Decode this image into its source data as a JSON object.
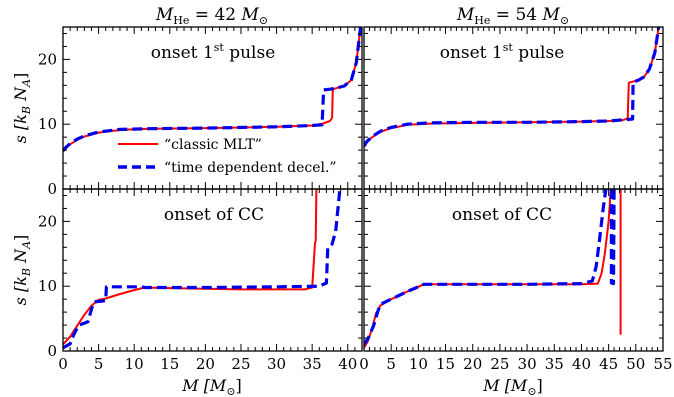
{
  "chart_data": [
    {
      "type": "line",
      "panel": "top-left",
      "title": "M_He = 42 M_sun",
      "annotation": "onset 1st pulse",
      "xlim": [
        0,
        42
      ],
      "ylim": [
        0,
        25
      ],
      "xticks": [
        0,
        5,
        10,
        15,
        20,
        25,
        30,
        35,
        40
      ],
      "yticks": [
        0,
        10,
        20
      ],
      "series": [
        {
          "name": "“classic MLT”",
          "color": "#ff0000",
          "style": "solid",
          "x": [
            0,
            0.3,
            1,
            2,
            3,
            5,
            8,
            12,
            20,
            30,
            35,
            36.5,
            37.5,
            37.8,
            37.9,
            38.5,
            39.5,
            40.5,
            41.2,
            41.8
          ],
          "y": [
            5.8,
            6.2,
            6.9,
            7.6,
            8.1,
            8.7,
            9.1,
            9.3,
            9.4,
            9.6,
            9.8,
            10.1,
            10.5,
            11.0,
            15.4,
            15.6,
            15.9,
            16.8,
            19.5,
            25
          ]
        },
        {
          "name": "“time dependent decel.”",
          "color": "#0000ee",
          "style": "dashed",
          "x": [
            0,
            0.3,
            1,
            2,
            3,
            5,
            8,
            12,
            20,
            30,
            35,
            36.4,
            36.6,
            37.5,
            38.5,
            39.5,
            40.5,
            41.2,
            41.8
          ],
          "y": [
            5.9,
            6.3,
            7.0,
            7.7,
            8.2,
            8.8,
            9.2,
            9.3,
            9.4,
            9.6,
            9.8,
            9.9,
            15.3,
            15.4,
            15.6,
            15.9,
            16.8,
            19.5,
            25
          ]
        }
      ]
    },
    {
      "type": "line",
      "panel": "top-right",
      "title": "M_He = 54 M_sun",
      "annotation": "onset 1st pulse",
      "xlim": [
        0,
        55
      ],
      "ylim": [
        0,
        25
      ],
      "xticks": [
        0,
        5,
        10,
        15,
        20,
        25,
        30,
        35,
        40,
        45,
        50,
        55
      ],
      "yticks": [
        0,
        10,
        20
      ],
      "series": [
        {
          "name": "“classic MLT”",
          "color": "#ff0000",
          "style": "solid",
          "x": [
            0,
            0.5,
            1.5,
            3,
            5,
            8,
            12,
            20,
            30,
            40,
            45,
            47.5,
            48.5,
            48.7,
            50,
            51.5,
            52.5,
            53.5,
            54.2
          ],
          "y": [
            6.5,
            7.2,
            8.0,
            8.8,
            9.4,
            9.9,
            10.1,
            10.2,
            10.3,
            10.4,
            10.5,
            10.6,
            10.9,
            16.4,
            16.7,
            17.3,
            18.5,
            21.0,
            25
          ]
        },
        {
          "name": "“time dependent decel.”",
          "color": "#0000ee",
          "style": "dashed",
          "x": [
            0,
            0.5,
            1.5,
            3,
            5,
            8,
            12,
            20,
            30,
            40,
            45,
            48,
            49.4,
            49.5,
            50.5,
            51.5,
            52.5,
            53.5,
            54.2
          ],
          "y": [
            6.6,
            7.3,
            8.1,
            8.9,
            9.5,
            10.0,
            10.2,
            10.3,
            10.3,
            10.4,
            10.5,
            10.7,
            10.8,
            16.5,
            16.8,
            17.3,
            18.5,
            21.0,
            25
          ]
        }
      ]
    },
    {
      "type": "line",
      "panel": "bottom-left",
      "annotation": "onset of CC",
      "xlim": [
        0,
        42
      ],
      "ylim": [
        0,
        25
      ],
      "xticks": [
        0,
        5,
        10,
        15,
        20,
        25,
        30,
        35,
        40
      ],
      "yticks": [
        0,
        10,
        20
      ],
      "series": [
        {
          "name": "“classic MLT”",
          "color": "#ff0000",
          "style": "solid",
          "x": [
            0,
            1,
            2,
            3,
            4,
            5,
            6,
            8,
            10,
            11.5,
            15,
            20,
            25,
            30,
            34,
            35,
            35.4,
            35.5,
            35.6
          ],
          "y": [
            1.0,
            2.2,
            3.9,
            5.6,
            7.0,
            7.9,
            8.1,
            8.8,
            9.4,
            9.8,
            9.7,
            9.6,
            9.5,
            9.5,
            9.5,
            9.8,
            16.7,
            17.0,
            25
          ]
        },
        {
          "name": "“time dependent decel.”",
          "color": "#0000ee",
          "style": "dashed",
          "x": [
            0,
            1,
            1.5,
            2.2,
            3,
            3.5,
            4.2,
            4.5,
            5.5,
            6.0,
            6.1,
            8,
            10,
            11,
            11.5,
            20,
            30,
            36,
            37.0,
            37.2,
            37.8,
            38.3,
            38.9
          ],
          "y": [
            0.5,
            1.1,
            2.5,
            4.0,
            4.3,
            4.5,
            7.2,
            7.6,
            7.7,
            7.8,
            9.9,
            9.9,
            9.9,
            9.9,
            9.8,
            9.8,
            9.9,
            10.0,
            10.5,
            16.0,
            16.5,
            18.5,
            25
          ]
        }
      ]
    },
    {
      "type": "line",
      "panel": "bottom-right",
      "annotation": "onset of CC",
      "xlim": [
        0,
        55
      ],
      "ylim": [
        0,
        25
      ],
      "xticks": [
        0,
        5,
        10,
        15,
        20,
        25,
        30,
        35,
        40,
        45,
        50,
        55
      ],
      "yticks": [
        0,
        10,
        20
      ],
      "series": [
        {
          "name": "“classic MLT”",
          "color": "#ff0000",
          "style": "solid",
          "x": [
            0,
            0.7,
            1.5,
            2.2,
            3,
            5,
            8,
            10,
            11,
            20,
            30,
            40,
            43,
            43.7,
            44.3,
            45,
            45.4
          ],
          "y": [
            0.5,
            1.5,
            3.5,
            5.8,
            7.0,
            8.0,
            9.2,
            9.9,
            10.3,
            10.3,
            10.3,
            10.3,
            10.4,
            12.0,
            15.0,
            20.0,
            25
          ]
        },
        {
          "name": "“time dependent decel.”",
          "color": "#0000ee",
          "style": "dashed",
          "x": [
            0,
            0.8,
            1.8,
            2.5,
            3,
            5,
            8,
            10,
            11,
            20,
            30,
            40,
            42,
            42.7,
            43.3,
            44,
            44.5
          ],
          "y": [
            1.0,
            2.0,
            4.0,
            6.0,
            7.2,
            8.0,
            9.2,
            9.9,
            10.3,
            10.3,
            10.3,
            10.4,
            10.8,
            13.0,
            17.0,
            22.0,
            25
          ]
        },
        {
          "name": "“classic MLT” (spike)",
          "color": "#ff0000",
          "style": "solid",
          "x": [
            47.2,
            47.2
          ],
          "y": [
            2.5,
            25
          ]
        },
        {
          "name": "“time dependent decel.” (spike)",
          "color": "#0000ee",
          "style": "dashed",
          "x": [
            45.5,
            45.5,
            45.9,
            46.0
          ],
          "y": [
            25,
            10.5,
            10.4,
            25
          ]
        }
      ]
    }
  ],
  "labels": {
    "title_left_prefix": "M",
    "title_left_sub": "He",
    "title_left_value": " = 42 ",
    "title_left_unit": "M",
    "title_left_unit_sub": "⊙",
    "title_right_prefix": "M",
    "title_right_sub": "He",
    "title_right_value": " = 54 ",
    "title_right_unit": "M",
    "title_right_unit_sub": "⊙",
    "pulse_text": "onset 1",
    "pulse_sup": "st",
    "pulse_tail": " pulse",
    "cc_text": "onset of CC",
    "ylabel": "s [k",
    "ylabel_sub_b": "B",
    "ylabel_mid": " N",
    "ylabel_sub_a": "A",
    "ylabel_end": "]",
    "xlabel": "M [M",
    "xlabel_sub": "⊙",
    "xlabel_end": "]",
    "legend_mlt": "“classic MLT”",
    "legend_tdd": "“time dependent decel.”"
  },
  "colors": {
    "mlt": "#ff0000",
    "tdd": "#0000ee",
    "axes": "#000000"
  }
}
